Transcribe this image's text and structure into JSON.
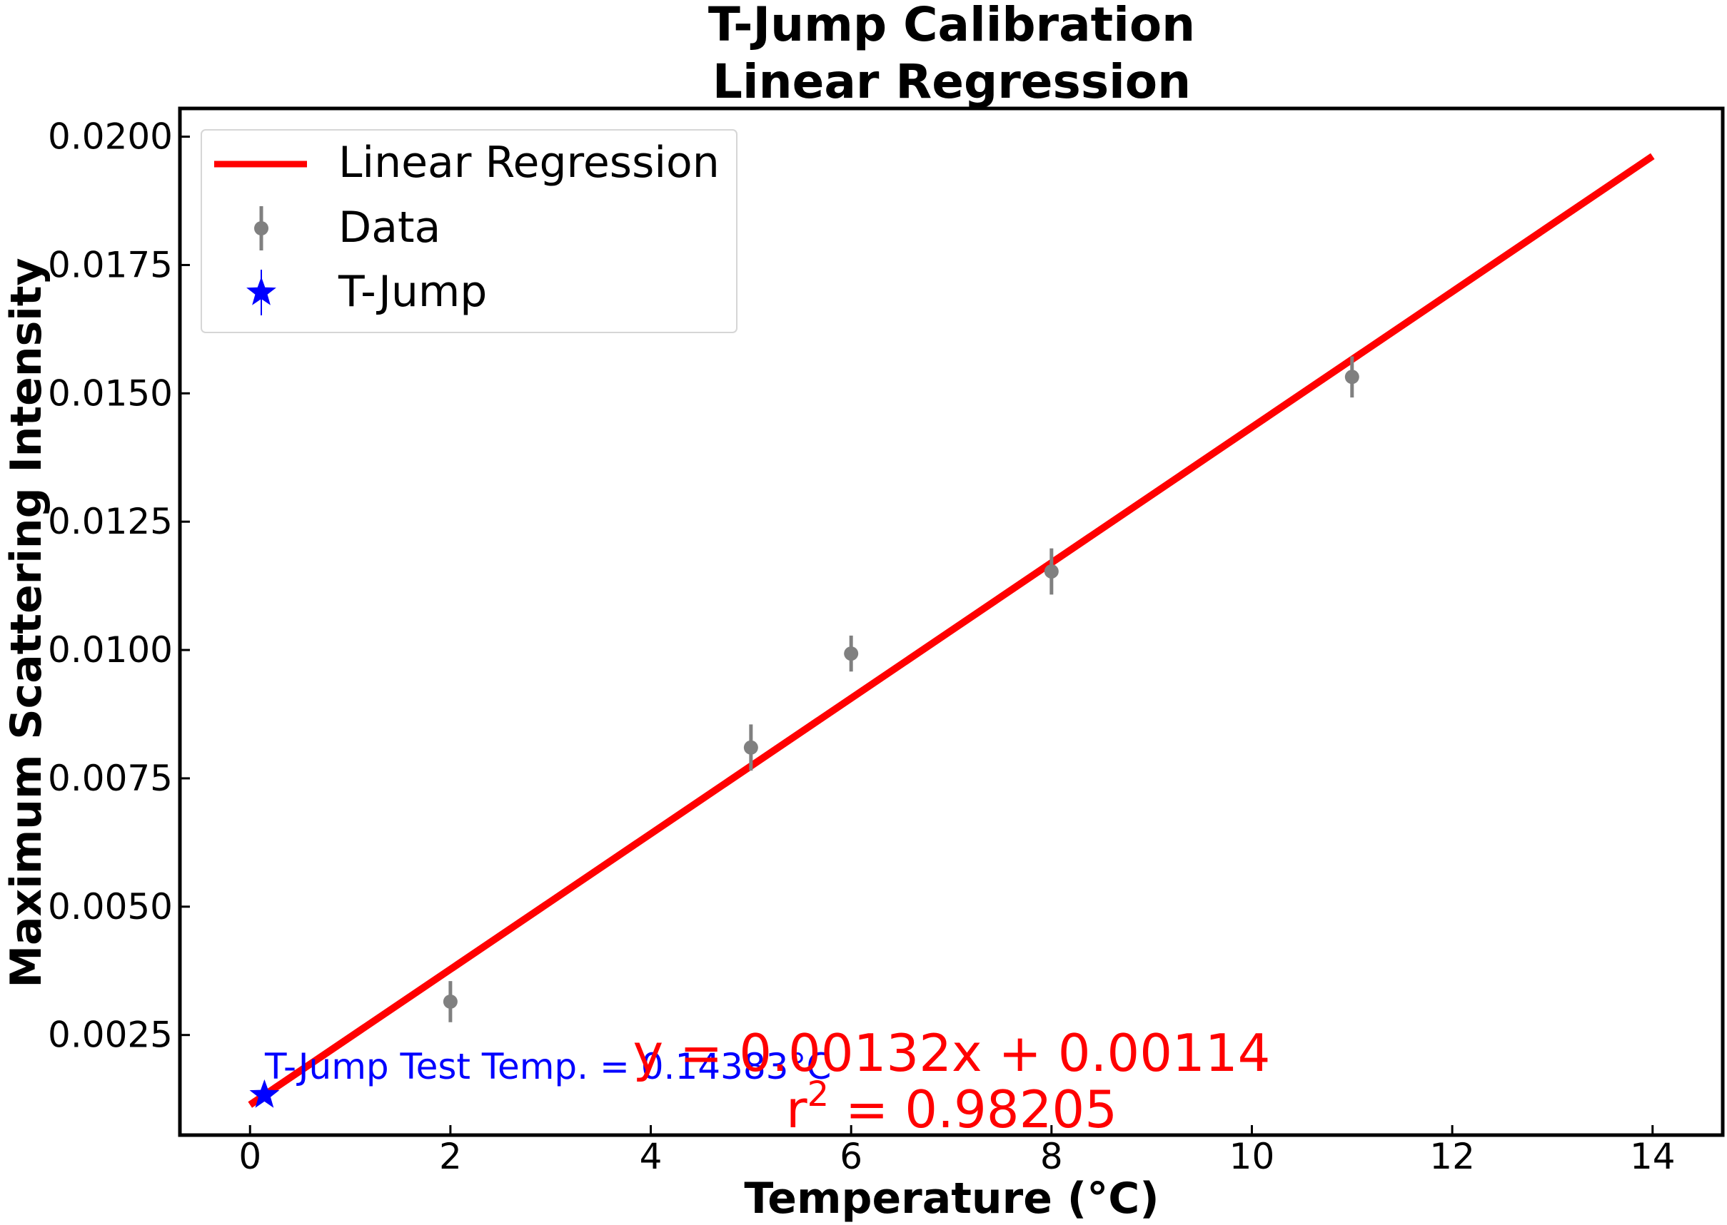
{
  "chart_data": {
    "type": "scatter",
    "title": "T-Jump Calibration\nLinear Regression",
    "xlabel": "Temperature (°C)",
    "ylabel": "Maximum Scattering Intensity",
    "xlim": [
      -0.7,
      14.7
    ],
    "ylim": [
      0.00055,
      0.02055
    ],
    "xticks": [
      0,
      2,
      4,
      6,
      8,
      10,
      12,
      14
    ],
    "yticks": [
      0.0025,
      0.005,
      0.0075,
      0.01,
      0.0125,
      0.015,
      0.0175,
      0.02
    ],
    "ytick_decimals": 4,
    "grid": false,
    "legend": {
      "location": "upper-left",
      "entries": [
        "Linear Regression",
        "Data",
        "T-Jump"
      ]
    },
    "series": [
      {
        "name": "Linear Regression",
        "kind": "line",
        "color": "#ff0000",
        "slope": 0.00132,
        "intercept": 0.00114,
        "x_range": [
          0,
          14
        ]
      },
      {
        "name": "Data",
        "kind": "errorbar",
        "color": "#808080",
        "points": [
          {
            "x": 2,
            "y": 0.00315,
            "err": 0.0004
          },
          {
            "x": 5,
            "y": 0.0081,
            "err": 0.00045
          },
          {
            "x": 6,
            "y": 0.00993,
            "err": 0.00035
          },
          {
            "x": 8,
            "y": 0.01153,
            "err": 0.00045
          },
          {
            "x": 11,
            "y": 0.01532,
            "err": 0.0004
          }
        ]
      },
      {
        "name": "T-Jump",
        "kind": "star",
        "color": "#0000ff",
        "points": [
          {
            "x": 0.14383,
            "y": 0.00133
          }
        ]
      }
    ],
    "annotations": {
      "tjump_label": "T-Jump Test Temp. = 0.14383°C",
      "equation": "y = 0.00132x + 0.00114",
      "r2_prefix": "r",
      "r2_sup": "2",
      "r2_value": " = 0.98205"
    }
  }
}
